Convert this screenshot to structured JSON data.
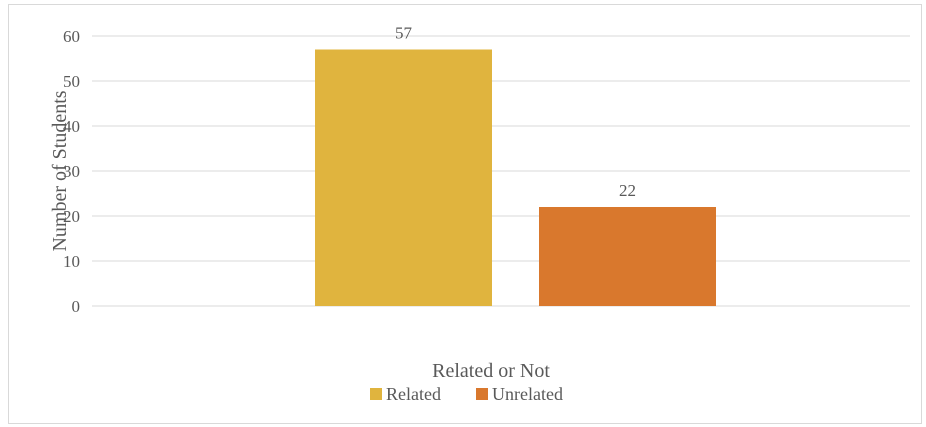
{
  "chart_data": {
    "type": "bar",
    "title": "",
    "xlabel": "Related or Not",
    "ylabel": "Number of Students",
    "ylim": [
      0,
      60
    ],
    "yticks": [
      0,
      10,
      20,
      30,
      40,
      50,
      60
    ],
    "grid": true,
    "legend_position": "bottom",
    "series": [
      {
        "name": "Related",
        "value": 57,
        "color": "#E0B43E"
      },
      {
        "name": "Unrelated",
        "value": 22,
        "color": "#D9782D"
      }
    ]
  }
}
